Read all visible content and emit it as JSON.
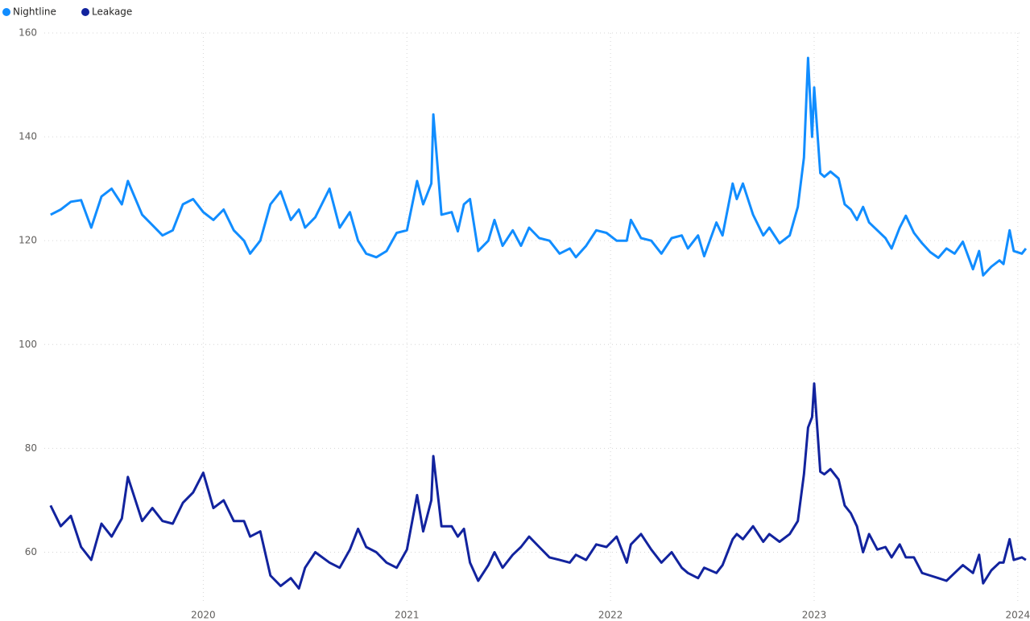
{
  "chart_data": {
    "type": "line",
    "x": [
      2019.25,
      2019.3,
      2019.35,
      2019.4,
      2019.45,
      2019.5,
      2019.55,
      2019.6,
      2019.63,
      2019.7,
      2019.75,
      2019.8,
      2019.85,
      2019.9,
      2019.95,
      2020.0,
      2020.05,
      2020.1,
      2020.15,
      2020.2,
      2020.23,
      2020.28,
      2020.33,
      2020.38,
      2020.43,
      2020.47,
      2020.5,
      2020.55,
      2020.62,
      2020.67,
      2020.72,
      2020.76,
      2020.8,
      2020.85,
      2020.9,
      2020.95,
      2021.0,
      2021.05,
      2021.08,
      2021.12,
      2021.13,
      2021.17,
      2021.22,
      2021.25,
      2021.28,
      2021.31,
      2021.35,
      2021.4,
      2021.43,
      2021.47,
      2021.52,
      2021.56,
      2021.6,
      2021.65,
      2021.7,
      2021.75,
      2021.8,
      2021.83,
      2021.88,
      2021.93,
      2021.98,
      2022.03,
      2022.08,
      2022.1,
      2022.15,
      2022.2,
      2022.25,
      2022.3,
      2022.35,
      2022.38,
      2022.43,
      2022.46,
      2022.52,
      2022.55,
      2022.6,
      2022.62,
      2022.65,
      2022.7,
      2022.75,
      2022.78,
      2022.83,
      2022.88,
      2022.92,
      2022.95,
      2022.97,
      2022.99,
      2023.0,
      2023.03,
      2023.05,
      2023.08,
      2023.12,
      2023.15,
      2023.18,
      2023.21,
      2023.24,
      2023.27,
      2023.31,
      2023.35,
      2023.38,
      2023.42,
      2023.45,
      2023.49,
      2023.53,
      2023.57,
      2023.61,
      2023.65,
      2023.69,
      2023.73,
      2023.78,
      2023.81,
      2023.83,
      2023.87,
      2023.91,
      2023.93,
      2023.96,
      2023.98,
      2024.02,
      2024.04
    ],
    "series": [
      {
        "name": "Nightline",
        "color": "#118dff",
        "values": [
          125,
          126,
          127.5,
          127.8,
          122.5,
          128.5,
          130,
          127,
          131.5,
          125,
          123,
          121,
          122,
          127,
          128,
          125.5,
          124,
          126,
          122,
          120,
          117.5,
          120,
          127,
          129.5,
          124,
          126,
          122.5,
          124.5,
          130,
          122.5,
          125.5,
          120,
          117.5,
          116.8,
          118,
          121.5,
          122,
          131.5,
          127,
          131,
          144.3,
          125,
          125.5,
          121.8,
          127,
          128,
          118,
          120,
          124,
          119,
          122,
          119,
          122.5,
          120.5,
          120,
          117.5,
          118.5,
          116.8,
          119,
          122,
          121.5,
          120,
          120,
          124,
          120.5,
          120,
          117.5,
          120.5,
          121,
          118.5,
          121,
          117,
          123.5,
          121,
          131,
          128,
          131,
          125,
          121,
          122.5,
          119.5,
          121,
          126.5,
          136,
          155.2,
          140,
          149.5,
          133,
          132.3,
          133.3,
          132,
          127,
          126,
          124,
          126.5,
          123.5,
          122,
          120.5,
          118.5,
          122.5,
          124.8,
          121.5,
          119.5,
          117.8,
          116.7,
          118.5,
          117.5,
          119.8,
          114.5,
          118,
          113.3,
          115,
          116.2,
          115.5,
          122,
          118,
          117.5,
          118.5
        ]
      },
      {
        "name": "Leakage",
        "color": "#12239e",
        "values": [
          69,
          65,
          67,
          61,
          58.5,
          65.5,
          63,
          66.5,
          74.5,
          66,
          68.5,
          66,
          65.5,
          69.5,
          71.5,
          75.3,
          68.5,
          70,
          66,
          66,
          63,
          64,
          55.5,
          53.5,
          55,
          53,
          57,
          60,
          58,
          57,
          60.5,
          64.5,
          61,
          60,
          58,
          57,
          60.5,
          71,
          64,
          70,
          78.5,
          65,
          65,
          63,
          64.5,
          58,
          54.5,
          57.5,
          60,
          57,
          59.5,
          61,
          63,
          61,
          59,
          58.5,
          58,
          59.5,
          58.5,
          61.5,
          61,
          63,
          58,
          61.5,
          63.5,
          60.5,
          58,
          60,
          57,
          56,
          55,
          57,
          56,
          57.5,
          62.5,
          63.5,
          62.5,
          65,
          62,
          63.5,
          62,
          63.5,
          66,
          75,
          84,
          86,
          92.5,
          75.5,
          75,
          76,
          74,
          69,
          67.5,
          65,
          60,
          63.5,
          60.5,
          61,
          59,
          61.5,
          59,
          59,
          56,
          55.5,
          55,
          54.5,
          56,
          57.5,
          56,
          59.5,
          54,
          56.5,
          58,
          58,
          62.5,
          58.5,
          59,
          58.5
        ]
      }
    ],
    "xlim": [
      2019.16,
      2024.06
    ],
    "xticks": [
      2020,
      2021,
      2022,
      2023,
      2024
    ],
    "ylim": [
      50,
      160
    ],
    "yticks": [
      60,
      80,
      100,
      120,
      140,
      160
    ],
    "grid": true,
    "legend": "top-left"
  }
}
